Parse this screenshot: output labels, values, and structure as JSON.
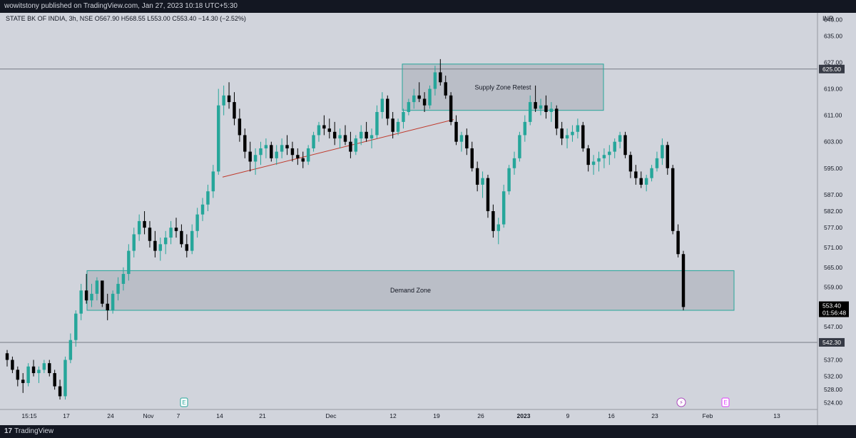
{
  "header": {
    "publisher_text": "wowitstony published on TradingView.com, Jan 27, 2023 10:18 UTC+5:30"
  },
  "footer": {
    "brand_logo": "17",
    "brand_label": "TradingView"
  },
  "chart_data": {
    "type": "candlestick",
    "symbol_line": "STATE BK OF INDIA, 3h, NSE  O567.90  H568.55  L553.00  C553.40  −14.30 (−2.52%)",
    "currency": "INR",
    "y_range": [
      522,
      642
    ],
    "y_ticks": [
      "640.00",
      "635.00",
      "627.00",
      "619.00",
      "611.00",
      "603.00",
      "595.00",
      "587.00",
      "582.00",
      "577.00",
      "571.00",
      "565.00",
      "559.00",
      "553.00",
      "547.00",
      "537.00",
      "532.00",
      "528.00",
      "524.00"
    ],
    "x_ticks": [
      "15:15",
      "17",
      "24",
      "Nov",
      "7",
      "14",
      "21",
      "Dec",
      "12",
      "19",
      "26",
      "2023",
      "9",
      "16",
      "23",
      "Feb",
      "13"
    ],
    "x_bold_ticks": [
      "2023"
    ],
    "horizontal_lines": [
      625.0,
      542.3
    ],
    "price_tags": [
      {
        "value": "625.00",
        "price": 625.0
      },
      {
        "value": "542.30",
        "price": 542.3
      }
    ],
    "last_price": {
      "value": "553.40",
      "countdown": "01:56:48",
      "price": 553.4
    },
    "zones": [
      {
        "label": "Supply Zone Retest",
        "top": 626.5,
        "bottom": 612.5,
        "x_start": "Dec 13",
        "x_end": "Jan 14"
      },
      {
        "label": "Demand Zone",
        "top": 564.0,
        "bottom": 552.0,
        "x_start": "Oct 20",
        "x_end": "Feb 06"
      }
    ],
    "trendline": {
      "from_price": 592.3,
      "to_price": 609.7
    },
    "event_markers": [
      {
        "symbol": "E",
        "kind": "earnings",
        "color": "#26a69a"
      },
      {
        "symbol": "⚡",
        "kind": "split",
        "color": "#ab47bc"
      },
      {
        "symbol": "E",
        "kind": "earnings",
        "color": "#e040fb"
      }
    ],
    "candles": [
      [
        539,
        540,
        535,
        537
      ],
      [
        537,
        538,
        533,
        534
      ],
      [
        534,
        535,
        529,
        531
      ],
      [
        531,
        533,
        527,
        530
      ],
      [
        530,
        536,
        529,
        535
      ],
      [
        535,
        537,
        532,
        533
      ],
      [
        533,
        535,
        530,
        534
      ],
      [
        534,
        537,
        533,
        536
      ],
      [
        536,
        537,
        532,
        533
      ],
      [
        533,
        534,
        528,
        529
      ],
      [
        529,
        531,
        525,
        526
      ],
      [
        526,
        538,
        525,
        537
      ],
      [
        537,
        545,
        536,
        543
      ],
      [
        543,
        552,
        541,
        551
      ],
      [
        551,
        560,
        549,
        558
      ],
      [
        558,
        563,
        554,
        555
      ],
      [
        555,
        560,
        553,
        557
      ],
      [
        557,
        562,
        555,
        561
      ],
      [
        561,
        560,
        553,
        554
      ],
      [
        554,
        557,
        549,
        552
      ],
      [
        552,
        558,
        551,
        557
      ],
      [
        557,
        562,
        555,
        560
      ],
      [
        560,
        565,
        558,
        563
      ],
      [
        563,
        572,
        561,
        570
      ],
      [
        570,
        577,
        568,
        575
      ],
      [
        575,
        581,
        573,
        579
      ],
      [
        579,
        582,
        575,
        577
      ],
      [
        577,
        579,
        571,
        573
      ],
      [
        573,
        576,
        568,
        570
      ],
      [
        570,
        574,
        567,
        572
      ],
      [
        572,
        576,
        569,
        574
      ],
      [
        574,
        579,
        572,
        577
      ],
      [
        577,
        580,
        574,
        576
      ],
      [
        576,
        578,
        571,
        572
      ],
      [
        572,
        575,
        568,
        570
      ],
      [
        570,
        578,
        569,
        576
      ],
      [
        576,
        583,
        574,
        581
      ],
      [
        581,
        586,
        579,
        584
      ],
      [
        584,
        590,
        582,
        588
      ],
      [
        588,
        596,
        586,
        594
      ],
      [
        594,
        619,
        593,
        614
      ],
      [
        614,
        620,
        611,
        617
      ],
      [
        617,
        621,
        613,
        615
      ],
      [
        615,
        618,
        608,
        610
      ],
      [
        610,
        613,
        603,
        605
      ],
      [
        605,
        607,
        598,
        600
      ],
      [
        600,
        603,
        594,
        597
      ],
      [
        597,
        601,
        593,
        599
      ],
      [
        599,
        603,
        596,
        601
      ],
      [
        601,
        604,
        598,
        602
      ],
      [
        602,
        603,
        597,
        598
      ],
      [
        598,
        602,
        596,
        600
      ],
      [
        600,
        604,
        598,
        602
      ],
      [
        602,
        605,
        599,
        601
      ],
      [
        601,
        603,
        597,
        599
      ],
      [
        599,
        601,
        596,
        598
      ],
      [
        598,
        600,
        595,
        597
      ],
      [
        597,
        602,
        596,
        601
      ],
      [
        601,
        606,
        600,
        605
      ],
      [
        605,
        609,
        603,
        608
      ],
      [
        608,
        611,
        605,
        607
      ],
      [
        607,
        610,
        604,
        606
      ],
      [
        606,
        609,
        602,
        604
      ],
      [
        604,
        607,
        601,
        605
      ],
      [
        605,
        608,
        602,
        603
      ],
      [
        603,
        606,
        598,
        600
      ],
      [
        600,
        605,
        599,
        604
      ],
      [
        604,
        608,
        602,
        606
      ],
      [
        606,
        609,
        603,
        604
      ],
      [
        604,
        607,
        601,
        605
      ],
      [
        605,
        614,
        604,
        612
      ],
      [
        612,
        618,
        610,
        616
      ],
      [
        616,
        617,
        608,
        610
      ],
      [
        610,
        612,
        604,
        606
      ],
      [
        606,
        610,
        605,
        609
      ],
      [
        609,
        613,
        607,
        612
      ],
      [
        612,
        616,
        611,
        615
      ],
      [
        615,
        619,
        613,
        617
      ],
      [
        617,
        621,
        615,
        616
      ],
      [
        616,
        618,
        612,
        614
      ],
      [
        614,
        620,
        613,
        619
      ],
      [
        619,
        626,
        617,
        624
      ],
      [
        624,
        628,
        620,
        621
      ],
      [
        621,
        623,
        616,
        617
      ],
      [
        617,
        618,
        608,
        609
      ],
      [
        609,
        611,
        602,
        603
      ],
      [
        603,
        606,
        600,
        605
      ],
      [
        605,
        607,
        599,
        601
      ],
      [
        601,
        603,
        594,
        595
      ],
      [
        595,
        597,
        588,
        590
      ],
      [
        590,
        594,
        586,
        592
      ],
      [
        592,
        593,
        580,
        582
      ],
      [
        582,
        584,
        574,
        576
      ],
      [
        576,
        580,
        572,
        578
      ],
      [
        578,
        590,
        577,
        588
      ],
      [
        588,
        596,
        587,
        595
      ],
      [
        595,
        600,
        593,
        598
      ],
      [
        598,
        606,
        597,
        605
      ],
      [
        605,
        611,
        603,
        609
      ],
      [
        609,
        617,
        608,
        615
      ],
      [
        615,
        620,
        612,
        613
      ],
      [
        613,
        616,
        611,
        614
      ],
      [
        614,
        617,
        610,
        612
      ],
      [
        612,
        615,
        609,
        613
      ],
      [
        613,
        614,
        605,
        607
      ],
      [
        607,
        609,
        602,
        604
      ],
      [
        604,
        607,
        601,
        605
      ],
      [
        605,
        608,
        603,
        606
      ],
      [
        606,
        610,
        604,
        608
      ],
      [
        608,
        609,
        600,
        601
      ],
      [
        601,
        602,
        594,
        596
      ],
      [
        596,
        599,
        593,
        597
      ],
      [
        597,
        600,
        594,
        598
      ],
      [
        598,
        601,
        595,
        599
      ],
      [
        599,
        602,
        596,
        600
      ],
      [
        600,
        604,
        598,
        603
      ],
      [
        603,
        606,
        601,
        605
      ],
      [
        605,
        606,
        598,
        599
      ],
      [
        599,
        600,
        592,
        594
      ],
      [
        594,
        596,
        590,
        592
      ],
      [
        592,
        594,
        589,
        590
      ],
      [
        590,
        593,
        588,
        592
      ],
      [
        592,
        596,
        591,
        595
      ],
      [
        595,
        600,
        594,
        598
      ],
      [
        598,
        604,
        596,
        602
      ],
      [
        602,
        603,
        593,
        595
      ],
      [
        595,
        596,
        575,
        576
      ],
      [
        576,
        578,
        568,
        569
      ],
      [
        569,
        570,
        552,
        553
      ]
    ]
  }
}
